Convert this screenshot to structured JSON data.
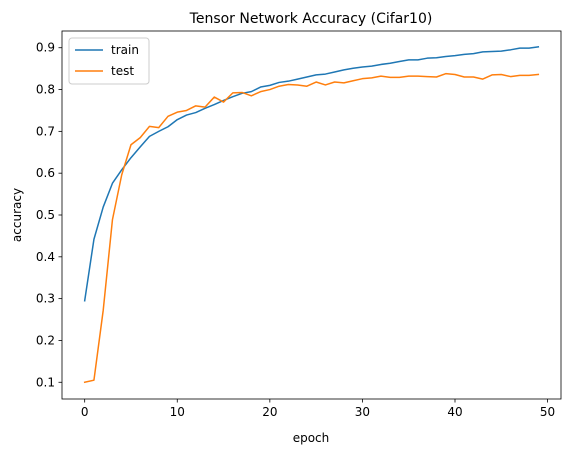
{
  "chart_data": {
    "type": "line",
    "title": "Tensor Network Accuracy (Cifar10)",
    "xlabel": "epoch",
    "ylabel": "accuracy",
    "xlim": [
      -2.45,
      51.45
    ],
    "ylim": [
      0.06,
      0.94
    ],
    "xticks": [
      0,
      10,
      20,
      30,
      40,
      50
    ],
    "yticks": [
      0.1,
      0.2,
      0.3,
      0.4,
      0.5,
      0.6,
      0.7,
      0.8,
      0.9
    ],
    "grid": false,
    "legend_position": "top-left",
    "x": [
      0,
      1,
      2,
      3,
      4,
      5,
      6,
      7,
      8,
      9,
      10,
      11,
      12,
      13,
      14,
      15,
      16,
      17,
      18,
      19,
      20,
      21,
      22,
      23,
      24,
      25,
      26,
      27,
      28,
      29,
      30,
      31,
      32,
      33,
      34,
      35,
      36,
      37,
      38,
      39,
      40,
      41,
      42,
      43,
      44,
      45,
      46,
      47,
      48,
      49
    ],
    "series": [
      {
        "name": "train",
        "color": "#1f77b4",
        "values": [
          0.295,
          0.442,
          0.519,
          0.576,
          0.608,
          0.637,
          0.663,
          0.688,
          0.7,
          0.711,
          0.728,
          0.739,
          0.745,
          0.755,
          0.764,
          0.774,
          0.783,
          0.791,
          0.795,
          0.806,
          0.81,
          0.817,
          0.82,
          0.825,
          0.83,
          0.835,
          0.837,
          0.842,
          0.847,
          0.851,
          0.854,
          0.856,
          0.86,
          0.863,
          0.867,
          0.871,
          0.871,
          0.875,
          0.876,
          0.879,
          0.881,
          0.884,
          0.886,
          0.89,
          0.891,
          0.892,
          0.895,
          0.899,
          0.899,
          0.902
        ]
      },
      {
        "name": "test",
        "color": "#ff7f0e",
        "values": [
          0.1,
          0.105,
          0.272,
          0.489,
          0.596,
          0.668,
          0.685,
          0.712,
          0.709,
          0.736,
          0.746,
          0.75,
          0.761,
          0.758,
          0.782,
          0.77,
          0.792,
          0.793,
          0.785,
          0.795,
          0.8,
          0.808,
          0.812,
          0.811,
          0.808,
          0.818,
          0.811,
          0.818,
          0.816,
          0.821,
          0.826,
          0.828,
          0.832,
          0.829,
          0.829,
          0.832,
          0.832,
          0.831,
          0.83,
          0.838,
          0.836,
          0.83,
          0.83,
          0.825,
          0.835,
          0.836,
          0.831,
          0.834,
          0.834,
          0.836
        ]
      }
    ]
  }
}
